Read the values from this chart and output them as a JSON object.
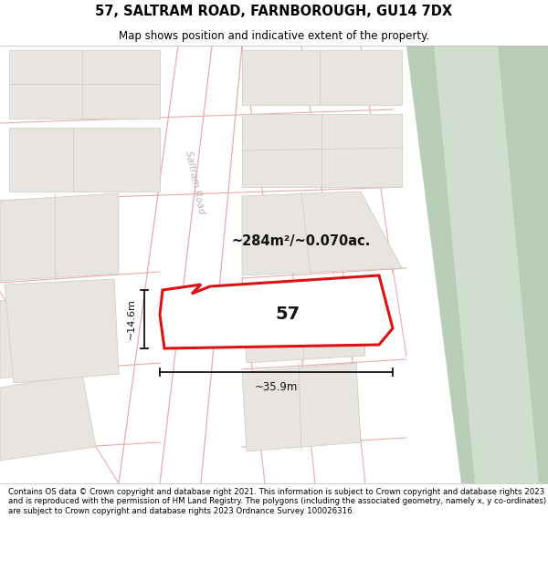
{
  "title": "57, SALTRAM ROAD, FARNBOROUGH, GU14 7DX",
  "subtitle": "Map shows position and indicative extent of the property.",
  "footer": "Contains OS data © Crown copyright and database right 2021. This information is subject to Crown copyright and database rights 2023 and is reproduced with the permission of HM Land Registry. The polygons (including the associated geometry, namely x, y co-ordinates) are subject to Crown copyright and database rights 2023 Ordnance Survey 100026316.",
  "area_label": "~284m²/~0.070ac.",
  "width_label": "~35.9m",
  "height_label": "~14.6m",
  "property_number": "57",
  "map_bg": "#f7f4f0",
  "road_fill": "#ffffff",
  "road_line": "#e8aaaa",
  "block_fill": "#e8e4e0",
  "block_edge": "#cfc8c0",
  "green1": "#b8cdb5",
  "green2": "#d0dece",
  "prop_fill": "#ffffff",
  "prop_edge": "#dd1111",
  "dim_color": "#111111",
  "text_color": "#333333",
  "saltram_road_color": "#c0b0b0"
}
